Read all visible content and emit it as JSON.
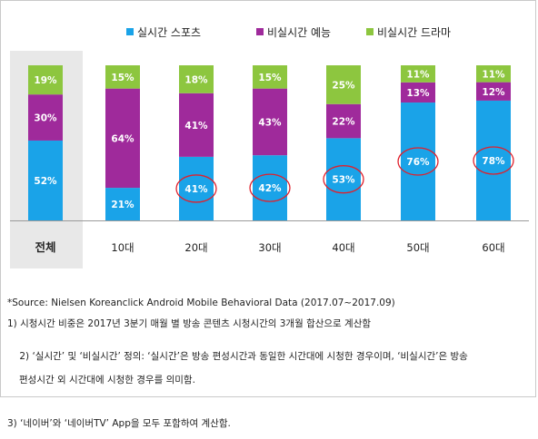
{
  "chart_data": {
    "type": "bar",
    "stacked": true,
    "normalized_percent": true,
    "categories": [
      "전체",
      "10대",
      "20대",
      "30대",
      "40대",
      "50대",
      "60대"
    ],
    "series": [
      {
        "name": "실시간 스포츠",
        "color": "#1aa3e8",
        "values": [
          52,
          21,
          41,
          42,
          53,
          76,
          78
        ]
      },
      {
        "name": "비실시간 예능",
        "color": "#9f2a9b",
        "values": [
          30,
          64,
          41,
          43,
          22,
          13,
          12
        ]
      },
      {
        "name": "비실시간 드라마",
        "color": "#8dc63f",
        "values": [
          19,
          15,
          18,
          15,
          25,
          11,
          11
        ]
      }
    ],
    "ylim": [
      0,
      100
    ],
    "highlighted": {
      "series": "실시간 스포츠",
      "categories": [
        "20대",
        "30대",
        "40대",
        "50대",
        "60대"
      ],
      "marker_color": "#e0202c"
    },
    "highlighted_category_background": {
      "category": "전체",
      "color": "#e8e8e8"
    },
    "legend_position": "top",
    "grid": false,
    "label_suffix": "%"
  },
  "notes": {
    "source": "*Source: Nielsen Koreanclick Android Mobile Behavioral Data (2017.07~2017.09)",
    "note1": "1) 시청시간 비중은 2017년 3분기 매월 별 방송 콘텐츠 시청시간의 3개월 합산으로 계산함",
    "note2_line1": "2) ‘실시간’ 및 ‘비실시간’ 정의: ‘실시간’은 방송 편성시간과 동일한 시간대에 시청한 경우이며, ‘비실시간’은 방송",
    "note2_line2": "편성시간 외 시간대에 시청한 경우를 의미함.",
    "note3": "3) ‘네이버’와 ‘네이버TV’ App을 모두 포함하여 계산함."
  }
}
